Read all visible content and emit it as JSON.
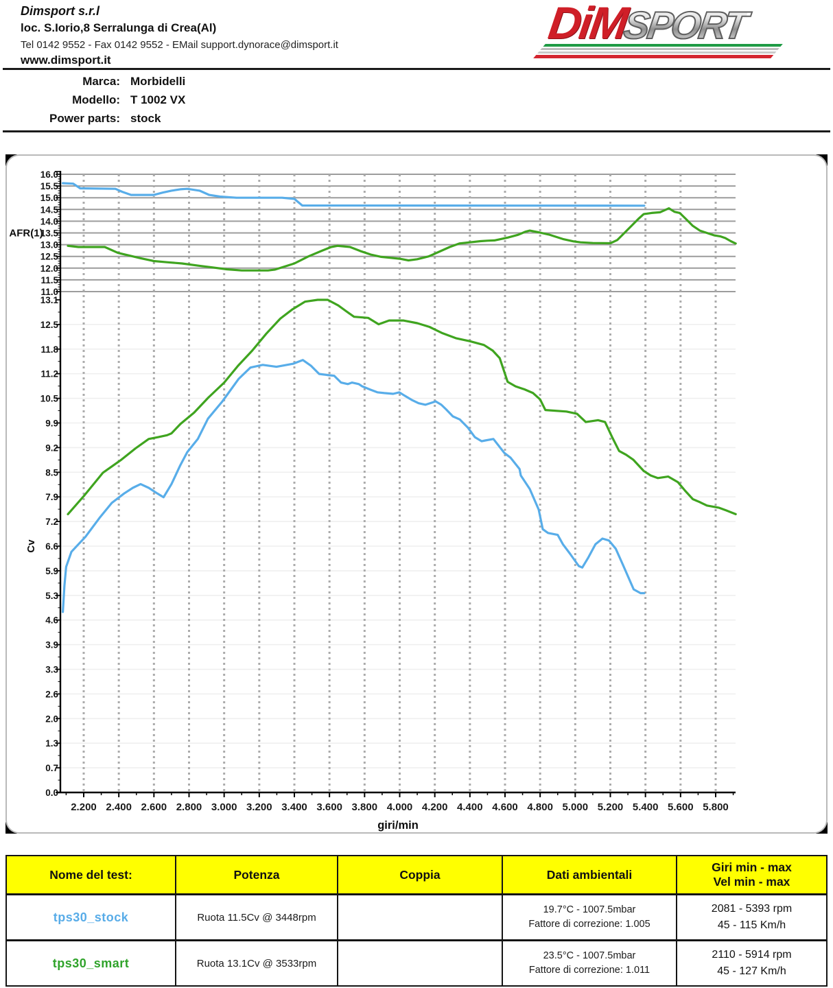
{
  "header": {
    "company": {
      "name": "Dimsport s.r.l",
      "address": "loc. S.Iorio,8 Serralunga di Crea(Al)",
      "contact": "Tel 0142 9552 - Fax 0142 9552 - EMail support.dynorace@dimsport.it",
      "website": "www.dimsport.it"
    },
    "logo": {
      "dim": "DiM",
      "sport": "SPORT"
    }
  },
  "vehicle": {
    "rows": [
      {
        "label": "Marca:",
        "value": "Morbidelli"
      },
      {
        "label": "Modello:",
        "value": "T 1002 VX"
      },
      {
        "label": "Power parts:",
        "value": "stock"
      }
    ]
  },
  "chart_data": {
    "type": "line",
    "xlabel": "giri/min",
    "x_tick_values": [
      2200,
      2400,
      2600,
      2800,
      3000,
      3200,
      3400,
      3600,
      3800,
      4000,
      4200,
      4400,
      4600,
      4800,
      5000,
      5200,
      5400,
      5600,
      5800
    ],
    "x_tick_labels": [
      "2.200",
      "2.400",
      "2.600",
      "2.800",
      "3.000",
      "3.200",
      "3.400",
      "3.600",
      "3.800",
      "4.000",
      "4.200",
      "4.400",
      "4.600",
      "4.800",
      "5.000",
      "5.200",
      "5.400",
      "5.600",
      "5.800"
    ],
    "grid": {
      "vertical": "dashed-gray",
      "afr_horizontal": "solid-gray",
      "power_horizontal": "faint"
    },
    "afr_panel": {
      "ylabel": "AFR(1)",
      "ylim": [
        11.0,
        16.0
      ],
      "ytick_labels": [
        "16.0",
        "15.5",
        "15.0",
        "14.5",
        "14.0",
        "13.5",
        "13.0",
        "12.5",
        "12.0",
        "11.5",
        "11.0"
      ],
      "series": [
        {
          "name": "tps30_stock",
          "color": "#58ade9",
          "points": [
            [
              2081,
              15.62
            ],
            [
              2140,
              15.6
            ],
            [
              2180,
              15.4
            ],
            [
              2380,
              15.38
            ],
            [
              2420,
              15.25
            ],
            [
              2470,
              15.12
            ],
            [
              2600,
              15.12
            ],
            [
              2650,
              15.22
            ],
            [
              2700,
              15.3
            ],
            [
              2750,
              15.36
            ],
            [
              2790,
              15.38
            ],
            [
              2860,
              15.3
            ],
            [
              2915,
              15.12
            ],
            [
              2975,
              15.05
            ],
            [
              3070,
              15.0
            ],
            [
              3330,
              15.0
            ],
            [
              3400,
              14.95
            ],
            [
              3445,
              14.67
            ],
            [
              5393,
              14.66
            ]
          ]
        },
        {
          "name": "tps30_smart",
          "color": "#3fa41f",
          "points": [
            [
              2110,
              12.95
            ],
            [
              2170,
              12.9
            ],
            [
              2320,
              12.9
            ],
            [
              2395,
              12.65
            ],
            [
              2480,
              12.5
            ],
            [
              2525,
              12.42
            ],
            [
              2600,
              12.3
            ],
            [
              2680,
              12.25
            ],
            [
              2760,
              12.2
            ],
            [
              2860,
              12.1
            ],
            [
              2935,
              12.03
            ],
            [
              3015,
              11.95
            ],
            [
              3100,
              11.9
            ],
            [
              3250,
              11.9
            ],
            [
              3290,
              11.94
            ],
            [
              3400,
              12.2
            ],
            [
              3480,
              12.5
            ],
            [
              3560,
              12.75
            ],
            [
              3610,
              12.9
            ],
            [
              3646,
              12.95
            ],
            [
              3717,
              12.9
            ],
            [
              3775,
              12.73
            ],
            [
              3835,
              12.58
            ],
            [
              3895,
              12.48
            ],
            [
              3950,
              12.44
            ],
            [
              4000,
              12.4
            ],
            [
              4050,
              12.33
            ],
            [
              4100,
              12.38
            ],
            [
              4165,
              12.5
            ],
            [
              4225,
              12.7
            ],
            [
              4285,
              12.9
            ],
            [
              4340,
              13.05
            ],
            [
              4400,
              13.1
            ],
            [
              4460,
              13.15
            ],
            [
              4500,
              13.17
            ],
            [
              4540,
              13.18
            ],
            [
              4615,
              13.3
            ],
            [
              4675,
              13.42
            ],
            [
              4715,
              13.55
            ],
            [
              4741,
              13.6
            ],
            [
              4790,
              13.53
            ],
            [
              4850,
              13.43
            ],
            [
              4930,
              13.24
            ],
            [
              4990,
              13.14
            ],
            [
              5030,
              13.1
            ],
            [
              5100,
              13.07
            ],
            [
              5200,
              13.06
            ],
            [
              5240,
              13.2
            ],
            [
              5280,
              13.5
            ],
            [
              5320,
              13.8
            ],
            [
              5360,
              14.1
            ],
            [
              5390,
              14.3
            ],
            [
              5435,
              14.35
            ],
            [
              5483,
              14.38
            ],
            [
              5534,
              14.55
            ],
            [
              5565,
              14.4
            ],
            [
              5595,
              14.35
            ],
            [
              5630,
              14.1
            ],
            [
              5670,
              13.8
            ],
            [
              5710,
              13.6
            ],
            [
              5750,
              13.5
            ],
            [
              5790,
              13.4
            ],
            [
              5828,
              13.35
            ],
            [
              5855,
              13.28
            ],
            [
              5886,
              13.15
            ],
            [
              5914,
              13.05
            ]
          ]
        }
      ]
    },
    "power_panel": {
      "ylabel": "Cv",
      "ylim": [
        0.0,
        13.1
      ],
      "ytick_labels": [
        "13.1",
        "12.5",
        "11.8",
        "11.2",
        "10.5",
        "9.9",
        "9.2",
        "8.5",
        "7.9",
        "7.2",
        "6.6",
        "5.9",
        "5.3",
        "4.6",
        "3.9",
        "3.3",
        "2.6",
        "2.0",
        "1.3",
        "0.7",
        "0.0"
      ],
      "series": [
        {
          "name": "tps30_stock",
          "color": "#58ade9",
          "peak": "11.5 Cv @ 3448 rpm",
          "points": [
            [
              2081,
              4.8
            ],
            [
              2090,
              5.5
            ],
            [
              2100,
              6.0
            ],
            [
              2130,
              6.4
            ],
            [
              2210,
              6.8
            ],
            [
              2290,
              7.3
            ],
            [
              2360,
              7.7
            ],
            [
              2430,
              7.95
            ],
            [
              2480,
              8.1
            ],
            [
              2524,
              8.2
            ],
            [
              2570,
              8.1
            ],
            [
              2620,
              7.95
            ],
            [
              2655,
              7.85
            ],
            [
              2700,
              8.2
            ],
            [
              2750,
              8.7
            ],
            [
              2790,
              9.05
            ],
            [
              2850,
              9.4
            ],
            [
              2908,
              9.94
            ],
            [
              2990,
              10.4
            ],
            [
              3083,
              11.0
            ],
            [
              3150,
              11.3
            ],
            [
              3220,
              11.37
            ],
            [
              3298,
              11.32
            ],
            [
              3392,
              11.4
            ],
            [
              3448,
              11.5
            ],
            [
              3494,
              11.35
            ],
            [
              3541,
              11.13
            ],
            [
              3588,
              11.1
            ],
            [
              3627,
              11.08
            ],
            [
              3666,
              10.9
            ],
            [
              3705,
              10.86
            ],
            [
              3728,
              10.9
            ],
            [
              3767,
              10.86
            ],
            [
              3787,
              10.8
            ],
            [
              3834,
              10.71
            ],
            [
              3873,
              10.64
            ],
            [
              3912,
              10.62
            ],
            [
              3963,
              10.6
            ],
            [
              3998,
              10.64
            ],
            [
              4029,
              10.55
            ],
            [
              4068,
              10.44
            ],
            [
              4108,
              10.35
            ],
            [
              4147,
              10.31
            ],
            [
              4186,
              10.37
            ],
            [
              4205,
              10.4
            ],
            [
              4237,
              10.31
            ],
            [
              4264,
              10.19
            ],
            [
              4303,
              10.0
            ],
            [
              4342,
              9.92
            ],
            [
              4389,
              9.7
            ],
            [
              4428,
              9.45
            ],
            [
              4467,
              9.34
            ],
            [
              4487,
              9.36
            ],
            [
              4534,
              9.4
            ],
            [
              4596,
              9.03
            ],
            [
              4632,
              8.9
            ],
            [
              4683,
              8.6
            ],
            [
              4690,
              8.43
            ],
            [
              4741,
              8.07
            ],
            [
              4792,
              7.52
            ],
            [
              4815,
              7.0
            ],
            [
              4845,
              6.9
            ],
            [
              4900,
              6.85
            ],
            [
              4930,
              6.6
            ],
            [
              4970,
              6.35
            ],
            [
              5020,
              6.02
            ],
            [
              5040,
              5.98
            ],
            [
              5075,
              6.25
            ],
            [
              5115,
              6.6
            ],
            [
              5155,
              6.75
            ],
            [
              5192,
              6.7
            ],
            [
              5231,
              6.48
            ],
            [
              5271,
              6.06
            ],
            [
              5333,
              5.4
            ],
            [
              5372,
              5.3
            ],
            [
              5393,
              5.3
            ]
          ]
        },
        {
          "name": "tps30_smart",
          "color": "#3fa41f",
          "peak": "13.1 Cv @ 3533 rpm",
          "points": [
            [
              2110,
              7.4
            ],
            [
              2204,
              7.9
            ],
            [
              2309,
              8.5
            ],
            [
              2415,
              8.85
            ],
            [
              2495,
              9.15
            ],
            [
              2570,
              9.4
            ],
            [
              2625,
              9.45
            ],
            [
              2675,
              9.5
            ],
            [
              2700,
              9.55
            ],
            [
              2751,
              9.8
            ],
            [
              2829,
              10.1
            ],
            [
              2910,
              10.5
            ],
            [
              3000,
              10.9
            ],
            [
              3080,
              11.35
            ],
            [
              3160,
              11.75
            ],
            [
              3240,
              12.2
            ],
            [
              3320,
              12.6
            ],
            [
              3390,
              12.85
            ],
            [
              3460,
              13.05
            ],
            [
              3533,
              13.1
            ],
            [
              3590,
              13.1
            ],
            [
              3650,
              12.95
            ],
            [
              3700,
              12.78
            ],
            [
              3740,
              12.65
            ],
            [
              3820,
              12.62
            ],
            [
              3880,
              12.45
            ],
            [
              3940,
              12.55
            ],
            [
              4020,
              12.55
            ],
            [
              4100,
              12.48
            ],
            [
              4170,
              12.38
            ],
            [
              4240,
              12.22
            ],
            [
              4320,
              12.08
            ],
            [
              4400,
              12.0
            ],
            [
              4480,
              11.9
            ],
            [
              4530,
              11.75
            ],
            [
              4570,
              11.55
            ],
            [
              4615,
              10.92
            ],
            [
              4660,
              10.8
            ],
            [
              4710,
              10.72
            ],
            [
              4760,
              10.62
            ],
            [
              4800,
              10.45
            ],
            [
              4830,
              10.17
            ],
            [
              4950,
              10.13
            ],
            [
              5010,
              10.07
            ],
            [
              5060,
              9.85
            ],
            [
              5130,
              9.9
            ],
            [
              5170,
              9.85
            ],
            [
              5210,
              9.45
            ],
            [
              5250,
              9.08
            ],
            [
              5290,
              8.98
            ],
            [
              5330,
              8.85
            ],
            [
              5390,
              8.55
            ],
            [
              5430,
              8.43
            ],
            [
              5470,
              8.36
            ],
            [
              5530,
              8.4
            ],
            [
              5585,
              8.25
            ],
            [
              5625,
              8.03
            ],
            [
              5670,
              7.8
            ],
            [
              5710,
              7.72
            ],
            [
              5750,
              7.63
            ],
            [
              5820,
              7.57
            ],
            [
              5860,
              7.5
            ],
            [
              5914,
              7.4
            ]
          ]
        }
      ]
    }
  },
  "table": {
    "headers": [
      "Nome del test:",
      "Potenza",
      "Coppia",
      "Dati ambientali",
      "Giri min - max",
      "Vel  min - max"
    ],
    "rows": [
      {
        "name": "tps30_stock",
        "name_style": "color:#58ace8",
        "potenza": "Ruota 11.5Cv @ 3448rpm",
        "coppia": "",
        "ambient_line1": "19.7°C - 1007.5mbar",
        "ambient_line2": "Fattore di correzione: 1.005",
        "range_line1": "2081 - 5393 rpm",
        "range_line2": "45 - 115 Km/h"
      },
      {
        "name": "tps30_smart",
        "name_style": "color:#2fa32a",
        "potenza": "Ruota 13.1Cv @ 3533rpm",
        "coppia": "",
        "ambient_line1": "23.5°C - 1007.5mbar",
        "ambient_line2": "Fattore di correzione: 1.011",
        "range_line1": "2110 - 5914 rpm",
        "range_line2": "45 - 127 Km/h"
      }
    ]
  }
}
